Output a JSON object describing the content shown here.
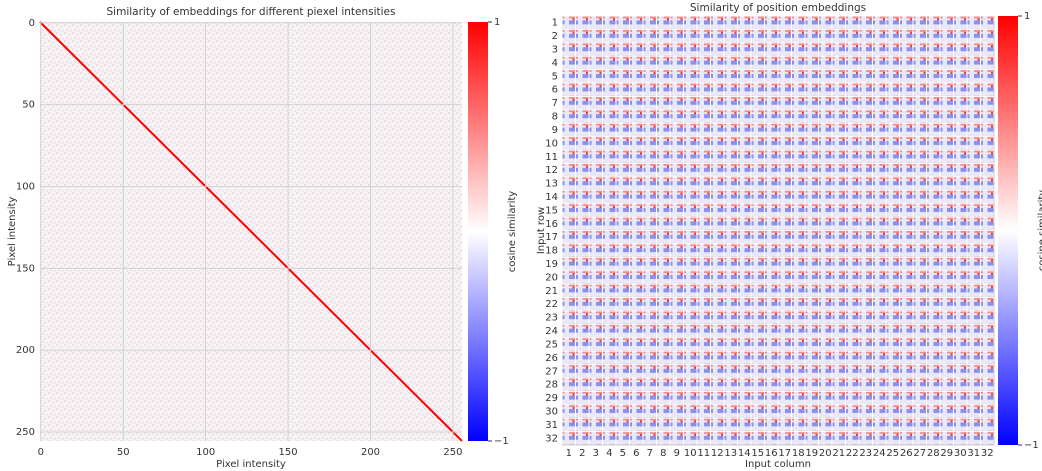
{
  "chart_data": [
    {
      "type": "heatmap",
      "title": "Similarity of embeddings for different piexel intensities",
      "xlabel": "Pixel intensity",
      "ylabel": "Pixel intensity",
      "xlim": [
        -0.5,
        255.5
      ],
      "ylim": [
        -0.5,
        255.5
      ],
      "xticks": [
        0,
        50,
        100,
        150,
        200,
        250
      ],
      "yticks": [
        0,
        50,
        100,
        150,
        200,
        250
      ],
      "grid": true,
      "colorbar": {
        "label": "cosine similarity",
        "lim": [
          -1,
          1
        ],
        "ticks": [
          1,
          {
            "value": -1,
            "label": "−1"
          }
        ],
        "colors": [
          "#0000ff",
          "#ffffff",
          "#ff0000"
        ]
      }
    },
    {
      "type": "heatmap-grid",
      "title": "Similarity of position embeddings",
      "xlabel": "Input column",
      "ylabel": "Input row",
      "x_categories": [
        "1",
        "2",
        "3",
        "4",
        "5",
        "6",
        "7",
        "8",
        "9",
        "10",
        "11",
        "12",
        "13",
        "14",
        "15",
        "16",
        "17",
        "18",
        "19",
        "20",
        "21",
        "22",
        "23",
        "24",
        "25",
        "26",
        "27",
        "28",
        "29",
        "30",
        "31",
        "32"
      ],
      "y_categories": [
        "1",
        "2",
        "3",
        "4",
        "5",
        "6",
        "7",
        "8",
        "9",
        "10",
        "11",
        "12",
        "13",
        "14",
        "15",
        "16",
        "17",
        "18",
        "19",
        "20",
        "21",
        "22",
        "23",
        "24",
        "25",
        "26",
        "27",
        "28",
        "29",
        "30",
        "31",
        "32"
      ],
      "colorbar": {
        "label": "cosine similarity",
        "lim": [
          -1,
          1
        ],
        "ticks": [
          1,
          {
            "value": -1,
            "label": "−1"
          }
        ],
        "colors": [
          "#0000ff",
          "#ffffff",
          "#ff0000"
        ]
      }
    }
  ]
}
